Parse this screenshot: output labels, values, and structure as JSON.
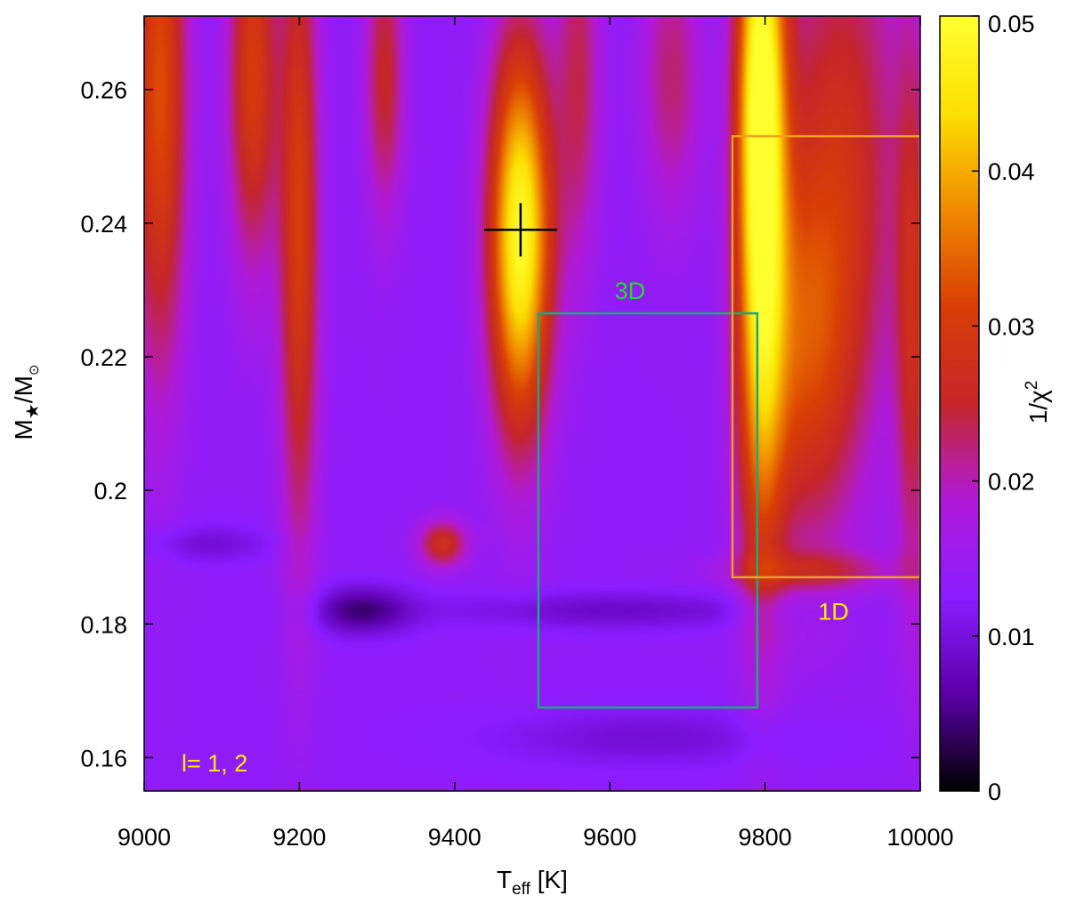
{
  "chart_data": {
    "type": "heatmap",
    "title": "",
    "xlabel": {
      "main": "T",
      "sub": "eff",
      "rest": " [K]"
    },
    "ylabel": {
      "main": "M",
      "sub": "★",
      "mid": "/M",
      "sub2": "⊙"
    },
    "colorbar_label": {
      "main": "1/χ",
      "sup": "2"
    },
    "xlim": [
      9000,
      10000
    ],
    "ylim": [
      0.155,
      0.271
    ],
    "colorbar_range": [
      0,
      0.05
    ],
    "x_ticks": [
      9000,
      9200,
      9400,
      9600,
      9800,
      10000
    ],
    "x_tick_labels": [
      "9000",
      "9200",
      "9400",
      "9600",
      "9800",
      "10000"
    ],
    "y_ticks": [
      0.16,
      0.18,
      0.2,
      0.22,
      0.24,
      0.26
    ],
    "y_tick_labels": [
      "0.16",
      "0.18",
      "0.2",
      "0.22",
      "0.24",
      "0.26"
    ],
    "colorbar_ticks": [
      0,
      0.01,
      0.02,
      0.03,
      0.04,
      0.05
    ],
    "colorbar_tick_labels": [
      "0",
      "0.01",
      "0.02",
      "0.03",
      "0.04",
      "0.05"
    ],
    "colormap": [
      "#000000",
      "#5a00a8",
      "#8a1cff",
      "#b01ad8",
      "#c4262a",
      "#d93d06",
      "#f08a00",
      "#fce000",
      "#ffff30"
    ],
    "background_value": 0.0135,
    "peaks": [
      {
        "x": 9020,
        "y": 0.26,
        "sx": 25,
        "sy": 0.03,
        "amp": 0.019
      },
      {
        "x": 9140,
        "y": 0.262,
        "sx": 22,
        "sy": 0.02,
        "amp": 0.017
      },
      {
        "x": 9200,
        "y": 0.24,
        "sx": 18,
        "sy": 0.035,
        "amp": 0.017
      },
      {
        "x": 9310,
        "y": 0.262,
        "sx": 18,
        "sy": 0.015,
        "amp": 0.012
      },
      {
        "x": 9485,
        "y": 0.238,
        "sx": 28,
        "sy": 0.02,
        "amp": 0.036
      },
      {
        "x": 9560,
        "y": 0.262,
        "sx": 20,
        "sy": 0.02,
        "amp": 0.01
      },
      {
        "x": 9680,
        "y": 0.262,
        "sx": 28,
        "sy": 0.015,
        "amp": 0.009
      },
      {
        "x": 9795,
        "y": 0.26,
        "sx": 22,
        "sy": 0.025,
        "amp": 0.037
      },
      {
        "x": 9795,
        "y": 0.215,
        "sx": 22,
        "sy": 0.025,
        "amp": 0.017
      },
      {
        "x": 9850,
        "y": 0.22,
        "sx": 45,
        "sy": 0.02,
        "amp": 0.014
      },
      {
        "x": 9900,
        "y": 0.25,
        "sx": 55,
        "sy": 0.03,
        "amp": 0.013
      },
      {
        "x": 9990,
        "y": 0.225,
        "sx": 15,
        "sy": 0.03,
        "amp": 0.012
      },
      {
        "x": 9385,
        "y": 0.192,
        "sx": 22,
        "sy": 0.0025,
        "amp": 0.014
      },
      {
        "x": 9860,
        "y": 0.188,
        "sx": 80,
        "sy": 0.002,
        "amp": 0.008
      },
      {
        "x": 9280,
        "y": 0.182,
        "sx": 45,
        "sy": 0.0025,
        "amp": -0.009
      },
      {
        "x": 9080,
        "y": 0.192,
        "sx": 60,
        "sy": 0.002,
        "amp": -0.004
      },
      {
        "x": 9600,
        "y": 0.182,
        "sx": 150,
        "sy": 0.002,
        "amp": -0.005
      },
      {
        "x": 9650,
        "y": 0.163,
        "sx": 140,
        "sy": 0.003,
        "amp": -0.004
      }
    ],
    "best_fit_marker": {
      "x": 9485,
      "y": 0.239,
      "x_err": 47,
      "y_err": 0.004,
      "color": "#000000"
    },
    "boxes": [
      {
        "label": "3D",
        "x": [
          9508,
          9790
        ],
        "y": [
          0.1675,
          0.2265
        ],
        "color": "#1fa67a",
        "label_color": "#22dd22"
      },
      {
        "label": "1D",
        "x": [
          9758,
          10000
        ],
        "y": [
          0.187,
          0.253
        ],
        "color": "#f0a020",
        "label_color": "#ffee00"
      }
    ],
    "corner_annotation": {
      "text": "l= 1, 2",
      "color": "#ffee00"
    }
  }
}
